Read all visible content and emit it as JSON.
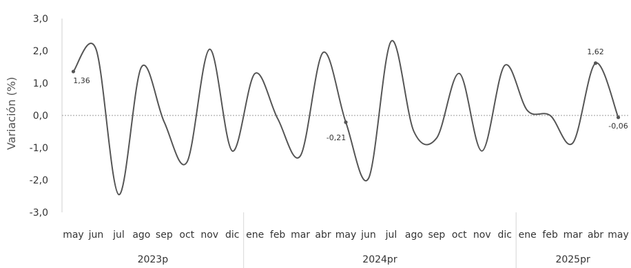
{
  "chart_data": {
    "type": "line",
    "ylabel": "Variación (%)",
    "ylim": [
      -3.0,
      3.0
    ],
    "yticks": [
      "3,0",
      "2,0",
      "1,0",
      "0,0",
      "-1,0",
      "-2,0",
      "-3,0"
    ],
    "categories": [
      "may",
      "jun",
      "jul",
      "ago",
      "sep",
      "oct",
      "nov",
      "dic",
      "ene",
      "feb",
      "mar",
      "abr",
      "may",
      "jun",
      "jul",
      "ago",
      "sep",
      "oct",
      "nov",
      "dic",
      "ene",
      "feb",
      "mar",
      "abr",
      "may"
    ],
    "groups": [
      {
        "label": "2023p",
        "count": 8
      },
      {
        "label": "2024pr",
        "count": 12
      },
      {
        "label": "2025pr",
        "count": 5
      }
    ],
    "values": [
      1.36,
      2.05,
      -2.45,
      1.5,
      -0.2,
      -1.45,
      2.05,
      -1.1,
      1.3,
      -0.1,
      -1.25,
      1.95,
      -0.21,
      -1.95,
      2.3,
      -0.5,
      -0.7,
      1.3,
      -1.1,
      1.55,
      0.15,
      0.0,
      -0.85,
      1.62,
      -0.06
    ],
    "labels": [
      {
        "index": 0,
        "text": "1,36"
      },
      {
        "index": 12,
        "text": "-0,21"
      },
      {
        "index": 23,
        "text": "1,62"
      },
      {
        "index": 24,
        "text": "-0,06"
      }
    ],
    "line_color": "#555555"
  }
}
